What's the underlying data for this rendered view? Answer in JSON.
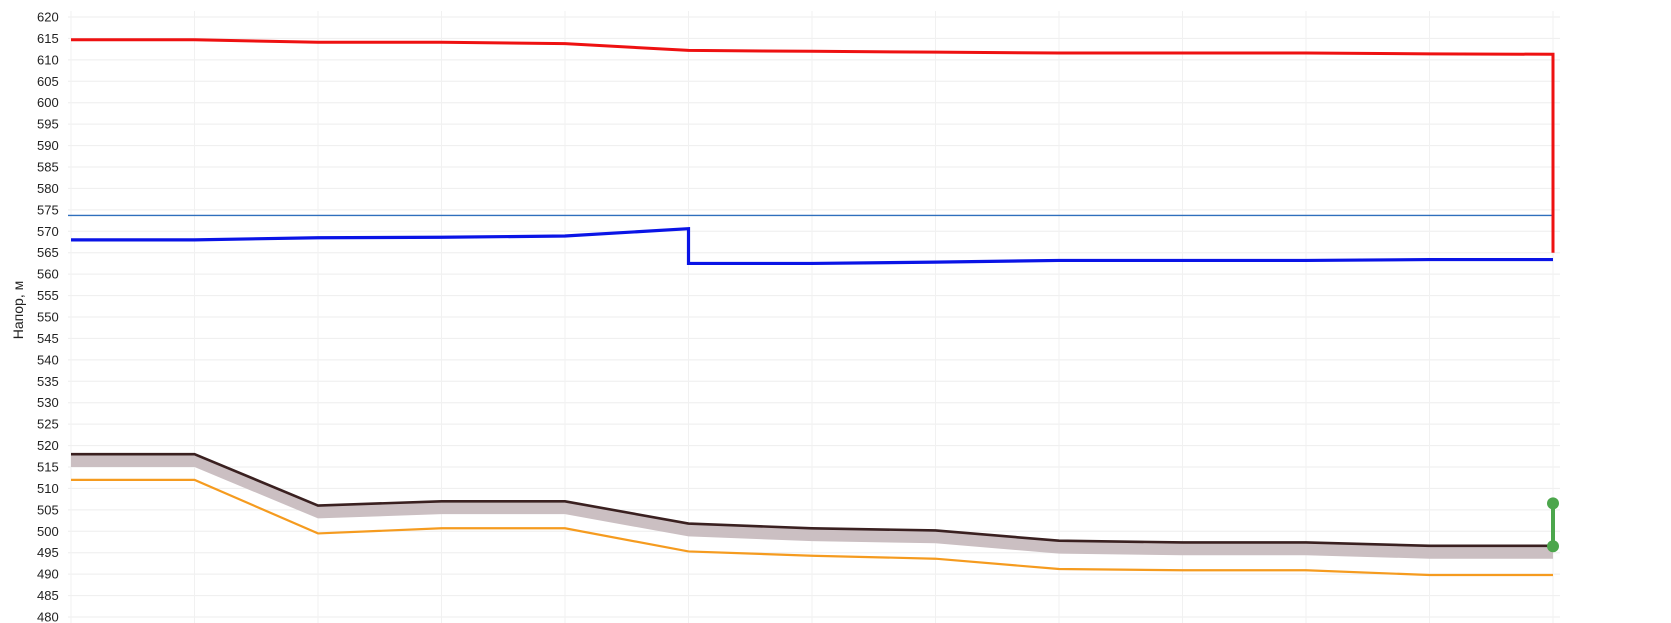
{
  "chart_data": {
    "type": "line",
    "title": "",
    "ylabel": "Напор, м",
    "xlabel": "",
    "ylim": [
      480,
      620
    ],
    "yticks": [
      620,
      615,
      610,
      605,
      600,
      595,
      590,
      585,
      580,
      575,
      570,
      565,
      560,
      555,
      550,
      545,
      540,
      535,
      530,
      525,
      520,
      515,
      510,
      505,
      500,
      495,
      490,
      485,
      480
    ],
    "grid": true,
    "x": [
      0,
      1,
      2,
      3,
      4,
      5,
      6,
      7,
      8,
      9,
      10,
      11,
      12
    ],
    "series": [
      {
        "key": "red",
        "color": "#ee1111",
        "values": [
          614.7,
          614.7,
          614.1,
          614.1,
          613.8,
          612.2,
          612.0,
          611.8,
          611.6,
          611.6,
          611.6,
          611.4,
          611.3
        ],
        "end_drop_to": 565.0
      },
      {
        "key": "blue",
        "color": "#0a14e6",
        "values": [
          568.0,
          568.0,
          568.5,
          568.6,
          568.9,
          570.6,
          562.5,
          562.8,
          563.2,
          563.2,
          563.2,
          563.4,
          563.4
        ],
        "step_at_x": 5
      },
      {
        "key": "ref-line",
        "color": "#2f6fbd",
        "constant": 573.7
      },
      {
        "key": "ground-top",
        "color": "#3a2020",
        "values": [
          518.0,
          518.0,
          506.0,
          507.0,
          507.0,
          501.8,
          500.7,
          500.2,
          497.8,
          497.4,
          497.4,
          496.6,
          496.6
        ]
      },
      {
        "key": "ground-band",
        "color": "#cbbfc2",
        "offset": -3.0
      },
      {
        "key": "orange",
        "color": "#f59b1f",
        "values": [
          512.0,
          512.0,
          499.5,
          500.7,
          500.7,
          495.3,
          494.3,
          493.6,
          491.2,
          490.9,
          490.9,
          489.8,
          489.8
        ]
      }
    ],
    "marker": {
      "color": "#4ca64c",
      "x": 12,
      "y_top": 506.5,
      "y_bottom": 496.5
    }
  }
}
